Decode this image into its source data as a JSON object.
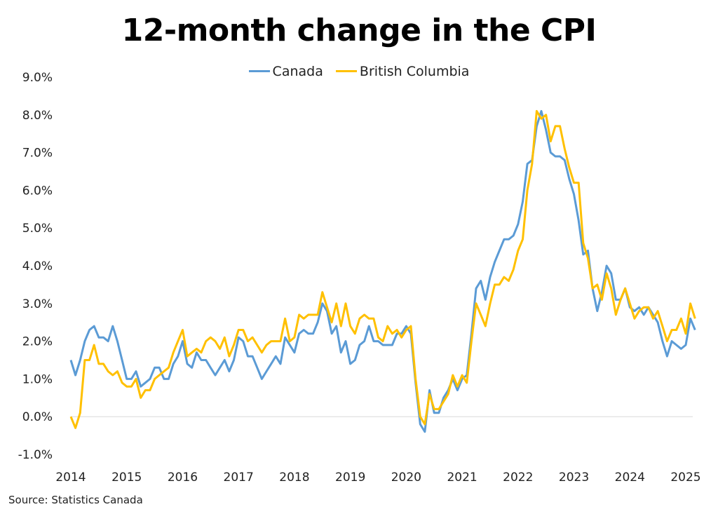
{
  "chart_data": {
    "type": "line",
    "title": "12-month change in the CPI",
    "xlabel": "",
    "ylabel": "",
    "ylim": [
      -1.0,
      9.0
    ],
    "y_ticks": [
      "-1.0%",
      "0.0%",
      "1.0%",
      "2.0%",
      "3.0%",
      "4.0%",
      "5.0%",
      "6.0%",
      "7.0%",
      "8.0%",
      "9.0%"
    ],
    "y_tick_values": [
      -1,
      0,
      1,
      2,
      3,
      4,
      5,
      6,
      7,
      8,
      9
    ],
    "x_ticks": [
      "2014",
      "2015",
      "2016",
      "2017",
      "2018",
      "2019",
      "2020",
      "2021",
      "2022",
      "2023",
      "2024",
      "2025"
    ],
    "x_start": "2014-01",
    "frequency": "monthly",
    "legend_position": "top-center",
    "grid": "zero line only",
    "series": [
      {
        "name": "Canada",
        "color": "#5B9BD5",
        "values": [
          1.5,
          1.1,
          1.5,
          2.0,
          2.3,
          2.4,
          2.1,
          2.1,
          2.0,
          2.4,
          2.0,
          1.5,
          1.0,
          1.0,
          1.2,
          0.8,
          0.9,
          1.0,
          1.3,
          1.3,
          1.0,
          1.0,
          1.4,
          1.6,
          2.0,
          1.4,
          1.3,
          1.7,
          1.5,
          1.5,
          1.3,
          1.1,
          1.3,
          1.5,
          1.2,
          1.5,
          2.1,
          2.0,
          1.6,
          1.6,
          1.3,
          1.0,
          1.2,
          1.4,
          1.6,
          1.4,
          2.1,
          1.9,
          1.7,
          2.2,
          2.3,
          2.2,
          2.2,
          2.5,
          3.0,
          2.8,
          2.2,
          2.4,
          1.7,
          2.0,
          1.4,
          1.5,
          1.9,
          2.0,
          2.4,
          2.0,
          2.0,
          1.9,
          1.9,
          1.9,
          2.2,
          2.2,
          2.4,
          2.2,
          0.9,
          -0.2,
          -0.4,
          0.7,
          0.1,
          0.1,
          0.5,
          0.7,
          1.0,
          0.7,
          1.0,
          1.1,
          2.2,
          3.4,
          3.6,
          3.1,
          3.7,
          4.1,
          4.4,
          4.7,
          4.7,
          4.8,
          5.1,
          5.7,
          6.7,
          6.8,
          7.7,
          8.1,
          7.6,
          7.0,
          6.9,
          6.9,
          6.8,
          6.3,
          5.9,
          5.2,
          4.3,
          4.4,
          3.4,
          2.8,
          3.3,
          4.0,
          3.8,
          3.1,
          3.1,
          3.4,
          2.9,
          2.8,
          2.9,
          2.7,
          2.9,
          2.7,
          2.5,
          2.0,
          1.6,
          2.0,
          1.9,
          1.8,
          1.9,
          2.6,
          2.3
        ]
      },
      {
        "name": "British Columbia",
        "color": "#FFC000",
        "values": [
          0.0,
          -0.3,
          0.1,
          1.5,
          1.5,
          1.9,
          1.4,
          1.4,
          1.2,
          1.1,
          1.2,
          0.9,
          0.8,
          0.8,
          1.0,
          0.5,
          0.7,
          0.7,
          1.0,
          1.1,
          1.2,
          1.3,
          1.7,
          2.0,
          2.3,
          1.6,
          1.7,
          1.8,
          1.7,
          2.0,
          2.1,
          2.0,
          1.8,
          2.1,
          1.6,
          1.9,
          2.3,
          2.3,
          2.0,
          2.1,
          1.9,
          1.7,
          1.9,
          2.0,
          2.0,
          2.0,
          2.6,
          2.0,
          2.1,
          2.7,
          2.6,
          2.7,
          2.7,
          2.7,
          3.3,
          2.9,
          2.5,
          3.0,
          2.4,
          3.0,
          2.4,
          2.2,
          2.6,
          2.7,
          2.6,
          2.6,
          2.1,
          2.0,
          2.4,
          2.2,
          2.3,
          2.1,
          2.3,
          2.4,
          1.0,
          0.0,
          -0.2,
          0.6,
          0.2,
          0.2,
          0.4,
          0.6,
          1.1,
          0.8,
          1.1,
          0.9,
          2.0,
          3.0,
          2.7,
          2.4,
          3.0,
          3.5,
          3.5,
          3.7,
          3.6,
          3.9,
          4.4,
          4.7,
          6.0,
          6.7,
          8.1,
          7.9,
          8.0,
          7.3,
          7.7,
          7.7,
          7.1,
          6.6,
          6.2,
          6.2,
          4.6,
          4.2,
          3.4,
          3.5,
          3.1,
          3.8,
          3.4,
          2.7,
          3.1,
          3.4,
          3.0,
          2.6,
          2.8,
          2.9,
          2.9,
          2.6,
          2.8,
          2.4,
          2.0,
          2.3,
          2.3,
          2.6,
          2.2,
          3.0,
          2.6
        ]
      }
    ]
  },
  "source": "Source: Statistics Canada"
}
